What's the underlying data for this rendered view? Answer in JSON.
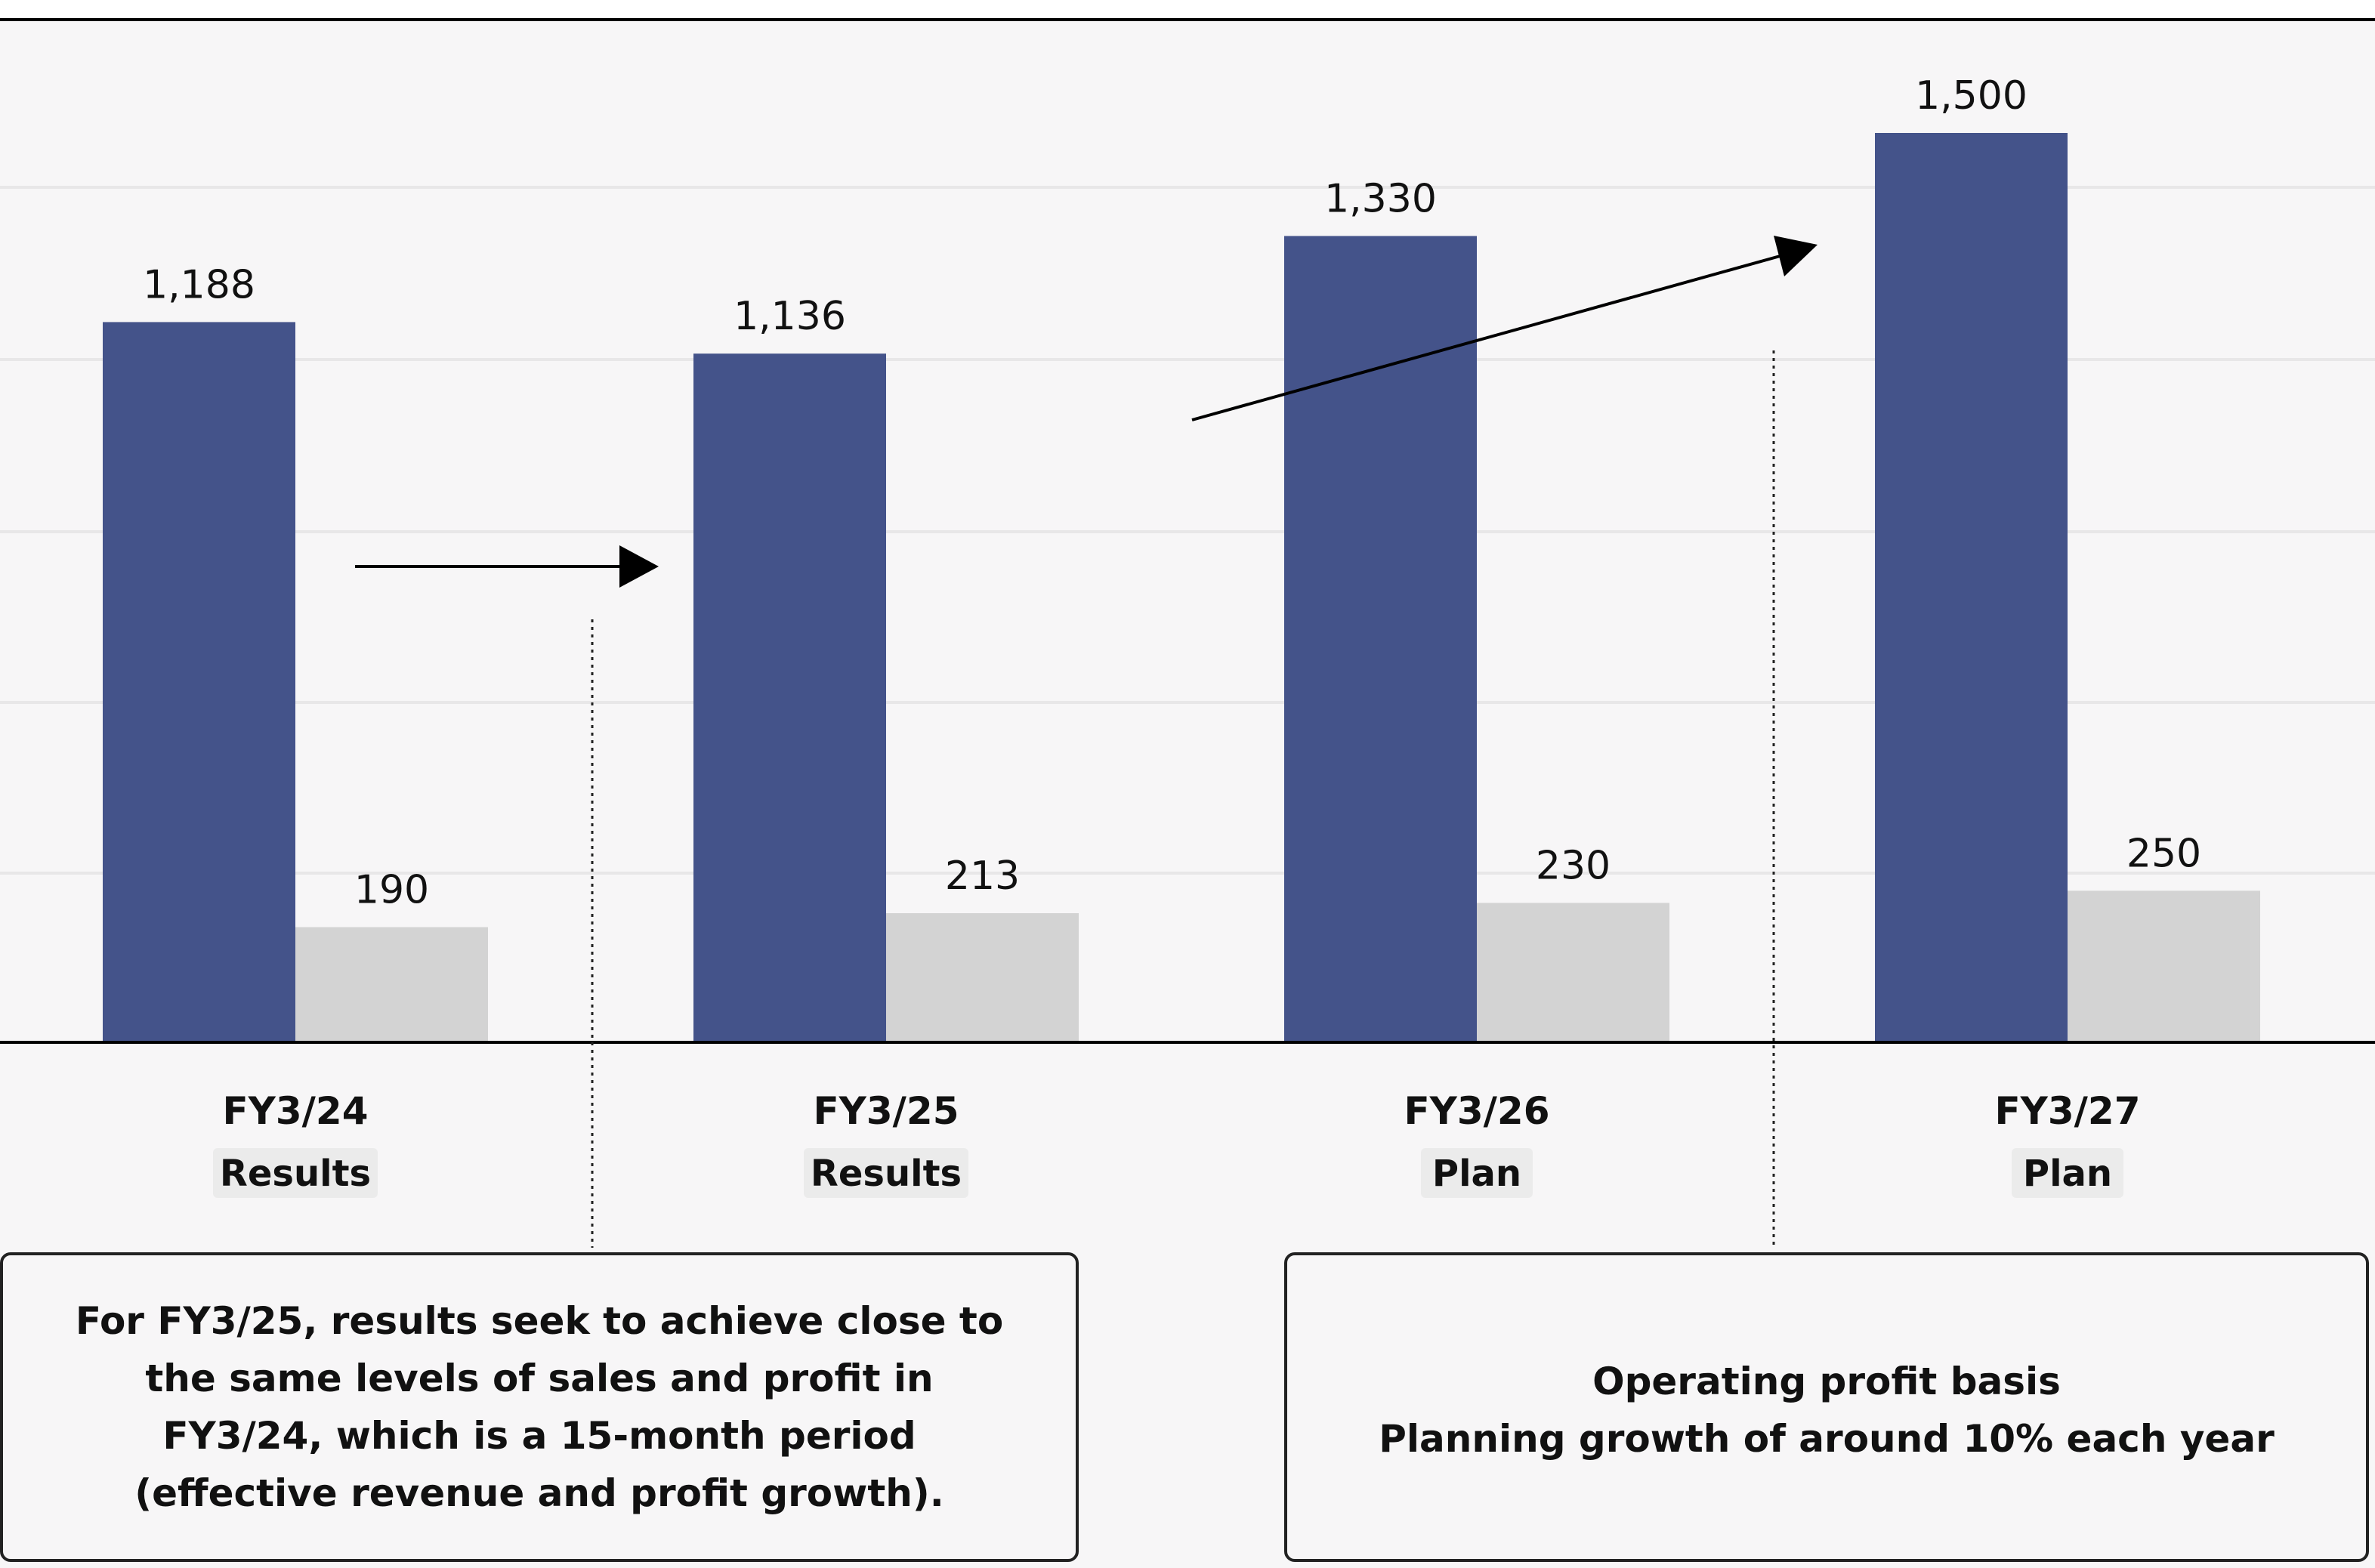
{
  "chart_data": {
    "type": "bar",
    "categories": [
      "FY3/24",
      "FY3/25",
      "FY3/26",
      "FY3/27"
    ],
    "category_badges": [
      "Results",
      "Results",
      "Plan",
      "Plan"
    ],
    "series": [
      {
        "values": [
          1188,
          1136,
          1330,
          1500
        ],
        "color": "#44538a"
      },
      {
        "values": [
          190,
          213,
          230,
          250
        ],
        "color": "#d3d3d3"
      }
    ],
    "data_labels": [
      [
        "1,188",
        "1,136",
        "1,330",
        "1,500"
      ],
      [
        "190",
        "213",
        "230",
        "250"
      ]
    ],
    "ylim": [
      0,
      1500
    ],
    "grid": true,
    "legend": "none",
    "annotations": {
      "left_box": [
        "For FY3/25, results seek to achieve close to",
        "the same levels of sales and profit in",
        "FY3/24, which is a 15-month period",
        "(effective revenue and profit growth)."
      ],
      "right_box": [
        "Operating profit basis",
        "Planning growth of around 10% each year"
      ]
    }
  }
}
